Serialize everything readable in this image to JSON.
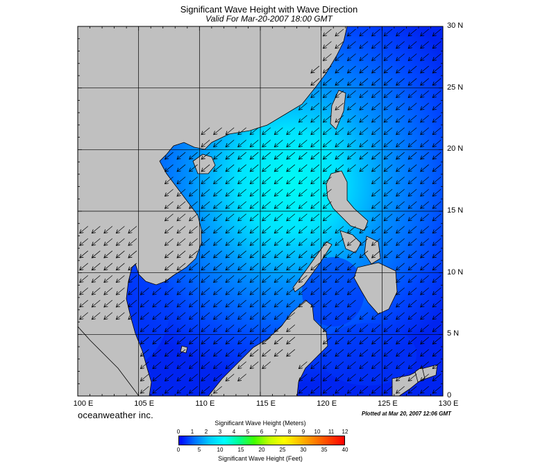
{
  "header": {
    "title": "Significant Wave Height with Wave Direction",
    "subtitle": "Valid For Mar-20-2007 18:00 GMT"
  },
  "map": {
    "lon_range": [
      100,
      130
    ],
    "lat_range": [
      0,
      30
    ],
    "grid_step_deg": 5,
    "land_color": "#c0c0c0",
    "sea_color_low": "#0000ff",
    "sea_color_high": "#00ffff",
    "wave_direction": "toward-southwest"
  },
  "axes": {
    "lat_labels": [
      "30 N",
      "25 N",
      "20 N",
      "15 N",
      "10 N",
      "5 N",
      "0"
    ],
    "lon_labels": [
      "100 E",
      "105 E",
      "110 E",
      "115 E",
      "120 E",
      "125 E",
      "130 E"
    ]
  },
  "footer": {
    "brand": "oceanweather inc.",
    "plotted": "Plotted at Mar 20, 2007 12:06 GMT"
  },
  "colorbar": {
    "title": "Significant Wave Height (Meters)",
    "meters_ticks": [
      "0",
      "1",
      "2",
      "3",
      "4",
      "5",
      "6",
      "7",
      "8",
      "9",
      "10",
      "11",
      "12"
    ],
    "feet_ticks": [
      "0",
      "5",
      "10",
      "15",
      "20",
      "25",
      "30",
      "35",
      "40"
    ],
    "feet_title": "Significant Wave Height (Feet)",
    "colors": [
      "#0000ff",
      "#0070ff",
      "#00c8ff",
      "#00ffff",
      "#00ff90",
      "#40ff00",
      "#c0ff00",
      "#ffff00",
      "#ffc000",
      "#ff8000",
      "#ff4000",
      "#ff0000"
    ]
  }
}
